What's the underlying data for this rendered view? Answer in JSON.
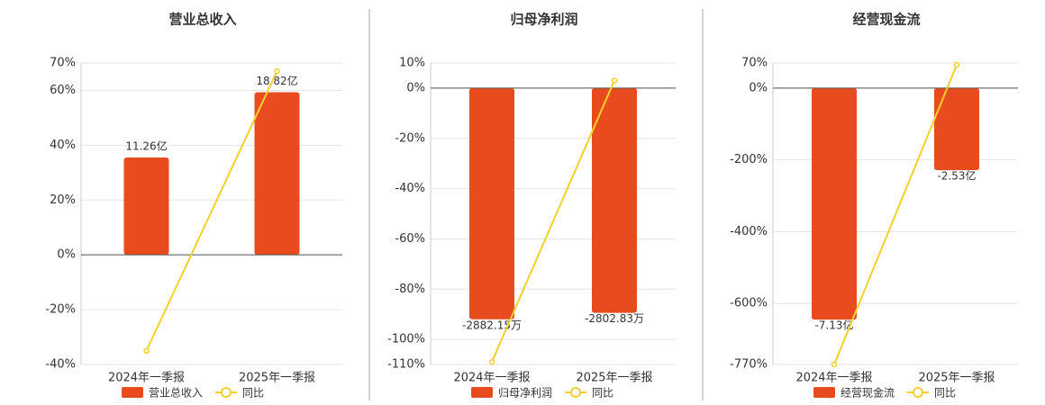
{
  "chart_data": [
    {
      "type": "bar",
      "title": "营业总收入",
      "categories": [
        "2024年一季报",
        "2025年一季报"
      ],
      "series": [
        {
          "name": "营业总收入",
          "type": "bar",
          "axis": "y2",
          "color": "#e84c1e",
          "values": [
            11.26,
            18.82
          ],
          "value_labels": [
            "11.26亿",
            "18.82亿"
          ]
        },
        {
          "name": "同比",
          "type": "line",
          "color": "#f2d12a",
          "values": [
            -35,
            67
          ]
        }
      ],
      "ylim": [
        -40,
        70
      ],
      "yticks": [
        {
          "value": 70,
          "label": "70%"
        },
        {
          "value": 60,
          "label": "60%"
        },
        {
          "value": 40,
          "label": "40%"
        },
        {
          "value": 20,
          "label": "20%"
        },
        {
          "value": 0,
          "label": "0%"
        },
        {
          "value": -20,
          "label": "-20%"
        },
        {
          "value": -40,
          "label": "-40%"
        }
      ],
      "y2lim": [
        -12.7,
        22.2
      ],
      "grid": true
    },
    {
      "type": "bar",
      "title": "归母净利润",
      "categories": [
        "2024年一季报",
        "2025年一季报"
      ],
      "series": [
        {
          "name": "归母净利润",
          "type": "bar",
          "axis": "y2",
          "color": "#e84c1e",
          "values": [
            -2882.15,
            -2802.83
          ],
          "value_labels": [
            "-2882.15万",
            "-2802.83万"
          ]
        },
        {
          "name": "同比",
          "type": "line",
          "color": "#f2d12a",
          "values": [
            -109,
            3
          ]
        }
      ],
      "ylim": [
        -110,
        10
      ],
      "yticks": [
        {
          "value": 10,
          "label": "10%"
        },
        {
          "value": 0,
          "label": "0%"
        },
        {
          "value": -20,
          "label": "-20%"
        },
        {
          "value": -40,
          "label": "-40%"
        },
        {
          "value": -60,
          "label": "-60%"
        },
        {
          "value": -80,
          "label": "-80%"
        },
        {
          "value": -100,
          "label": "-100%"
        },
        {
          "value": -110,
          "label": "-110%"
        }
      ],
      "y2lim": [
        -3446,
        313
      ],
      "grid": true
    },
    {
      "type": "bar",
      "title": "经营现金流",
      "categories": [
        "2024年一季报",
        "2025年一季报"
      ],
      "series": [
        {
          "name": "经营现金流",
          "type": "bar",
          "axis": "y2",
          "color": "#e84c1e",
          "values": [
            -7.13,
            -2.53
          ],
          "value_labels": [
            "-7.13亿",
            "-2.53亿"
          ]
        },
        {
          "name": "同比",
          "type": "line",
          "color": "#f2d12a",
          "values": [
            -770,
            65
          ]
        }
      ],
      "ylim": [
        -770,
        70
      ],
      "yticks": [
        {
          "value": 70,
          "label": "70%"
        },
        {
          "value": 0,
          "label": "0%"
        },
        {
          "value": -200,
          "label": "-200%"
        },
        {
          "value": -400,
          "label": "-400%"
        },
        {
          "value": -600,
          "label": "-600%"
        },
        {
          "value": -770,
          "label": "-770%"
        }
      ],
      "y2lim": [
        -8.51,
        0.77
      ],
      "grid": true
    }
  ]
}
